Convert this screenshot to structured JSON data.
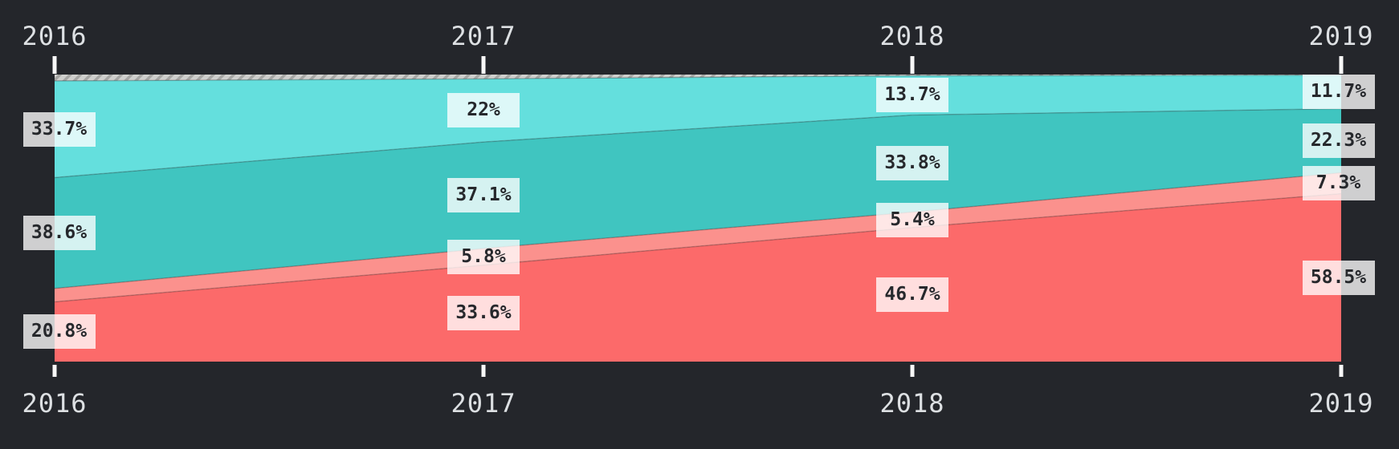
{
  "page": {
    "background_color": "#24262b",
    "axis_text_color": "#dde0e3",
    "tick_color": "#f8f8f8",
    "label_box_background": "rgba(255,255,255,0.78)",
    "label_text_color": "#26282c"
  },
  "chart_data": {
    "type": "area",
    "variant": "100-percent-stacked",
    "title": "",
    "xlabel": "",
    "ylabel": "",
    "grid": false,
    "legend": false,
    "x": [
      "2016",
      "2017",
      "2018",
      "2019"
    ],
    "axis_top_labels": [
      "2016",
      "2017",
      "2018",
      "2019"
    ],
    "axis_bottom_labels": [
      "2016",
      "2017",
      "2018",
      "2019"
    ],
    "ylim_percent": [
      0,
      100
    ],
    "hatch": {
      "light": "#cfcfcd",
      "dark": "#a6a6a4",
      "edge": "#b3b3b1"
    },
    "boundary_stroke": "rgba(45,45,45,0.28)",
    "series": [
      {
        "name": "hatched-gray",
        "color": "hatch",
        "values": [
          2.2,
          1.5,
          0.4,
          0.2
        ],
        "labels": [
          null,
          null,
          null,
          null
        ]
      },
      {
        "name": "cyan",
        "color": "#64dfdd",
        "values": [
          33.7,
          22,
          13.7,
          11.7
        ],
        "labels": [
          "33.7%",
          "22%",
          "13.7%",
          "11.7%"
        ]
      },
      {
        "name": "teal",
        "color": "#40c5c0",
        "values": [
          38.6,
          37.1,
          33.8,
          22.3
        ],
        "labels": [
          "38.6%",
          "37.1%",
          "33.8%",
          "22.3%"
        ]
      },
      {
        "name": "pink",
        "color": "#fb918d",
        "values": [
          4.7,
          5.8,
          5.4,
          7.3
        ],
        "labels": [
          null,
          "5.8%",
          "5.4%",
          "7.3%"
        ]
      },
      {
        "name": "red",
        "color": "#fc6a6a",
        "values": [
          20.8,
          33.6,
          46.7,
          58.5
        ],
        "labels": [
          "20.8%",
          "33.6%",
          "46.7%",
          "58.5%"
        ]
      }
    ]
  }
}
